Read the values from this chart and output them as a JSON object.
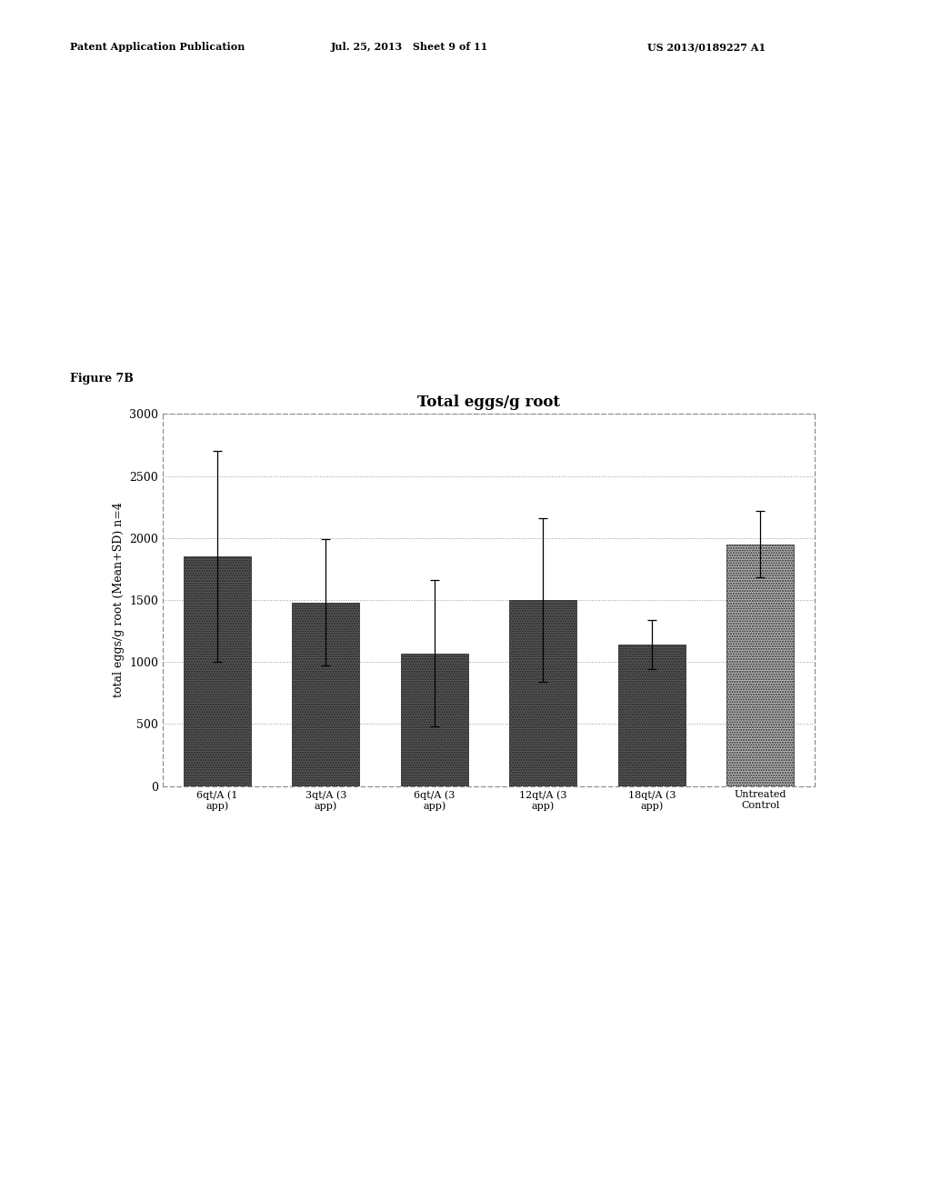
{
  "categories": [
    "6qt/A (1\napp)",
    "3qt/A (3\napp)",
    "6qt/A (3\napp)",
    "12qt/A (3\napp)",
    "18qt/A (3\napp)",
    "Untreated\nControl"
  ],
  "values": [
    1850,
    1480,
    1070,
    1500,
    1140,
    1950
  ],
  "errors": [
    850,
    510,
    590,
    660,
    200,
    270
  ],
  "bar_colors": [
    "#585858",
    "#585858",
    "#585858",
    "#585858",
    "#585858",
    "#b8b8b8"
  ],
  "title": "Total eggs/g root",
  "ylabel": "total eggs/g root (Mean+SD) n=4",
  "ylim": [
    0,
    3000
  ],
  "yticks": [
    0,
    500,
    1000,
    1500,
    2000,
    2500,
    3000
  ],
  "figure_label": "Figure 7B",
  "background_color": "#ffffff",
  "header_left": "Patent Application Publication",
  "header_mid": "Jul. 25, 2013   Sheet 9 of 11",
  "header_right": "US 2013/0189227 A1",
  "title_fontsize": 12,
  "label_fontsize": 9,
  "tick_fontsize": 9,
  "header_fontsize": 8,
  "figure_label_fontsize": 9
}
